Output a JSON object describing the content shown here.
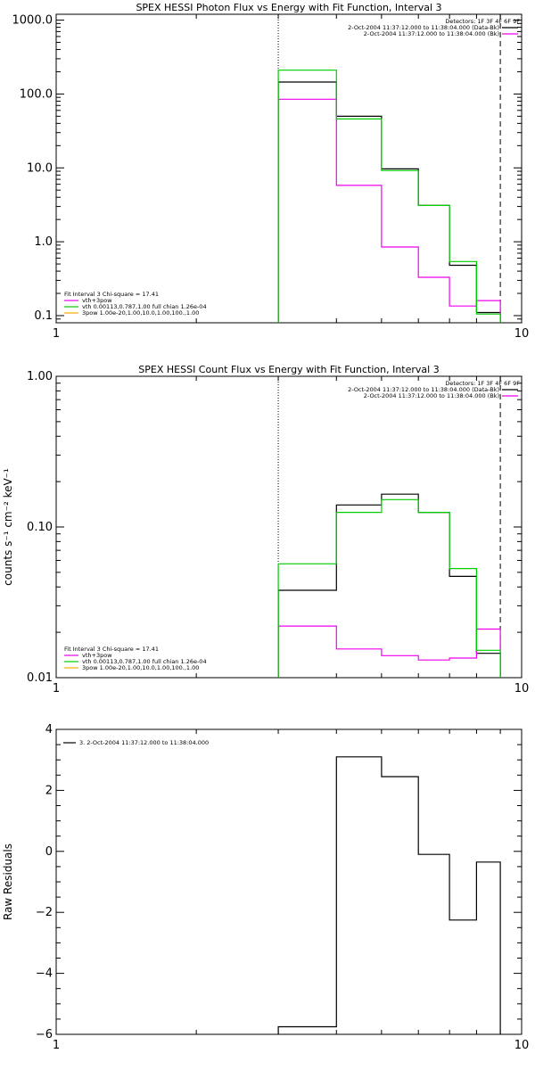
{
  "colors": {
    "black": "#000000",
    "magenta": "#ee00ee",
    "green": "#00cc00",
    "orange": "#ffaa00",
    "data": "#000000",
    "bk": "#ee00ee",
    "total": "#00cc00"
  },
  "chart_data": [
    {
      "type": "line",
      "title": "SPEX HESSI Photon Flux vs Energy with Fit Function, Interval 3",
      "xlabel": "",
      "ylabel": "",
      "xscale": "log",
      "yscale": "log",
      "xlim": [
        1,
        10
      ],
      "ylim": [
        0.08,
        1200
      ],
      "xticks": [
        {
          "v": 1,
          "label": "1"
        },
        {
          "v": 10,
          "label": "10"
        }
      ],
      "yticks": [
        {
          "v": 0.1,
          "label": "0.1"
        },
        {
          "v": 1,
          "label": "1.0"
        },
        {
          "v": 10,
          "label": "10.0"
        },
        {
          "v": 100,
          "label": "100.0"
        },
        {
          "v": 1000,
          "label": "1000.0"
        }
      ],
      "vlines": [
        {
          "x": 3,
          "style": "dotted"
        },
        {
          "x": 9,
          "style": "dashed"
        }
      ],
      "edges": [
        3,
        4,
        5,
        6,
        7,
        8,
        9
      ],
      "series": [
        {
          "name": "2-Oct-2004 11:37:12.000 to 11:38:04.000 (Data-Bk)",
          "color": "black",
          "values": [
            145,
            50,
            9.7,
            3.1,
            0.48,
            0.11
          ]
        },
        {
          "name": "2-Oct-2004 11:37:12.000 to 11:38:04.000 (Bk)",
          "color": "magenta",
          "values": [
            85,
            5.8,
            0.85,
            0.33,
            0.135,
            0.16
          ]
        },
        {
          "name": "vth 0.00113,0.787,1.00  full chian 1.26e-04",
          "color": "green",
          "values": [
            210,
            46,
            9.2,
            3.1,
            0.54,
            0.105
          ]
        }
      ],
      "legend_top": {
        "header": "Detectors: 1F 3F 4F 6F 9F",
        "entries": [
          {
            "text": "2-Oct-2004 11:37:12.000 to 11:38:04.000 (Data-Bk)",
            "color": "black"
          },
          {
            "text": "2-Oct-2004 11:37:12.000 to 11:38:04.000 (Bk)",
            "color": "magenta"
          }
        ]
      },
      "legend_bottom": {
        "header": "Fit Interval 3    Chi-square = 17.41",
        "entries": [
          {
            "text": "vth+3pow",
            "color": "magenta"
          },
          {
            "text": "vth 0.00113,0.787,1.00  full chian 1.26e-04",
            "color": "green"
          },
          {
            "text": "3pow 1.00e-20,1.00,10.0,1.00,100.,1.00",
            "color": "orange"
          }
        ]
      }
    },
    {
      "type": "line",
      "title": "SPEX HESSI Count Flux vs Energy with Fit Function, Interval 3",
      "xlabel": "",
      "ylabel": "counts s⁻¹ cm⁻² keV⁻¹",
      "xscale": "log",
      "yscale": "log",
      "xlim": [
        1,
        10
      ],
      "ylim": [
        0.01,
        1.0
      ],
      "xticks": [
        {
          "v": 1,
          "label": "1"
        },
        {
          "v": 10,
          "label": "10"
        }
      ],
      "yticks": [
        {
          "v": 0.01,
          "label": "0.01"
        },
        {
          "v": 0.1,
          "label": "0.10"
        },
        {
          "v": 1,
          "label": "1.00"
        }
      ],
      "vlines": [
        {
          "x": 3,
          "style": "dotted"
        },
        {
          "x": 9,
          "style": "dashed"
        }
      ],
      "edges": [
        3,
        4,
        5,
        6,
        7,
        8,
        9
      ],
      "series": [
        {
          "name": "2-Oct-2004 11:37:12.000 to 11:38:04.000 (Data-Bk)",
          "color": "black",
          "values": [
            0.038,
            0.14,
            0.165,
            0.125,
            0.047,
            0.0145
          ]
        },
        {
          "name": "2-Oct-2004 11:37:12.000 to 11:38:04.000 (Bk)",
          "color": "magenta",
          "values": [
            0.022,
            0.0155,
            0.014,
            0.0131,
            0.0135,
            0.021
          ]
        },
        {
          "name": "vth 0.00113,0.787,1.00  full chian 1.26e-04",
          "color": "green",
          "values": [
            0.057,
            0.125,
            0.152,
            0.125,
            0.053,
            0.0152
          ]
        }
      ],
      "legend_top": {
        "header": "Detectors: 1F 3F 4F 6F 9F",
        "entries": [
          {
            "text": "2-Oct-2004 11:37:12.000 to 11:38:04.000 (Data-Bk)",
            "color": "black"
          },
          {
            "text": "2-Oct-2004 11:37:12.000 to 11:38:04.000 (Bk)",
            "color": "magenta"
          }
        ]
      },
      "legend_bottom": {
        "header": "Fit Interval 3    Chi-square = 17.41",
        "entries": [
          {
            "text": "vth+3pow",
            "color": "magenta"
          },
          {
            "text": "vth 0.00113,0.787,1.00  full chian 1.26e-04",
            "color": "green"
          },
          {
            "text": "3pow 1.00e-20,1.00,10.0,1.00,100.,1.00",
            "color": "orange"
          }
        ]
      }
    },
    {
      "type": "line",
      "title": "",
      "xlabel": "",
      "ylabel": "Raw Residuals",
      "xscale": "log",
      "yscale": "linear",
      "xlim": [
        1,
        10
      ],
      "ylim": [
        -6,
        4
      ],
      "xticks": [
        {
          "v": 1,
          "label": "1"
        },
        {
          "v": 10,
          "label": "10"
        }
      ],
      "yticks": [
        {
          "v": -6,
          "label": "−6"
        },
        {
          "v": -4,
          "label": "−4"
        },
        {
          "v": -2,
          "label": "−2"
        },
        {
          "v": 0,
          "label": "0"
        },
        {
          "v": 2,
          "label": "2"
        },
        {
          "v": 4,
          "label": "4"
        }
      ],
      "vlines": [],
      "edges": [
        3,
        4,
        5,
        6,
        7,
        8,
        9
      ],
      "series": [
        {
          "name": "3.  2-Oct-2004 11:37:12.000 to 11:38:04.000",
          "color": "black",
          "values": [
            -5.75,
            3.1,
            2.45,
            -0.1,
            -2.25,
            -0.35
          ]
        }
      ],
      "legend_top": {
        "header": "",
        "entries": [
          {
            "text": "3.  2-Oct-2004 11:37:12.000 to 11:38:04.000",
            "color": "black"
          }
        ]
      },
      "legend_bottom": null
    }
  ]
}
